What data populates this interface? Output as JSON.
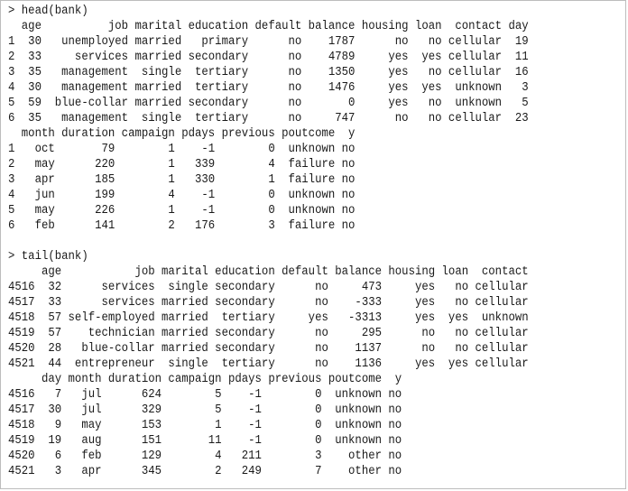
{
  "console": {
    "head_block": {
      "command": "> head(bank)",
      "lines": [
        "  age          job marital education default balance housing loan  contact day",
        "1  30   unemployed married   primary      no    1787      no   no cellular  19",
        "2  33     services married secondary      no    4789     yes  yes cellular  11",
        "3  35   management  single  tertiary      no    1350     yes   no cellular  16",
        "4  30   management married  tertiary      no    1476     yes  yes  unknown   3",
        "5  59  blue-collar married secondary      no       0     yes   no  unknown   5",
        "6  35   management  single  tertiary      no     747      no   no cellular  23",
        "  month duration campaign pdays previous poutcome  y",
        "1   oct       79        1    -1        0  unknown no",
        "2   may      220        1   339        4  failure no",
        "3   apr      185        1   330        1  failure no",
        "4   jun      199        4    -1        0  unknown no",
        "5   may      226        1    -1        0  unknown no",
        "6   feb      141        2   176        3  failure no"
      ]
    },
    "tail_block": {
      "command": "> tail(bank)",
      "lines": [
        "     age           job marital education default balance housing loan  contact",
        "4516  32      services  single secondary      no     473     yes   no cellular",
        "4517  33      services married secondary      no    -333     yes   no cellular",
        "4518  57 self-employed married  tertiary     yes   -3313     yes  yes  unknown",
        "4519  57    technician married secondary      no     295      no   no cellular",
        "4520  28   blue-collar married secondary      no    1137      no   no cellular",
        "4521  44  entrepreneur  single  tertiary      no    1136     yes  yes cellular",
        "     day month duration campaign pdays previous poutcome  y",
        "4516   7   jul      624        5    -1        0  unknown no",
        "4517  30   jul      329        5    -1        0  unknown no",
        "4518   9   may      153        1    -1        0  unknown no",
        "4519  19   aug      151       11    -1        0  unknown no",
        "4520   6   feb      129        4   211        3    other no",
        "4521   3   apr      345        2   249        7    other no"
      ]
    }
  }
}
